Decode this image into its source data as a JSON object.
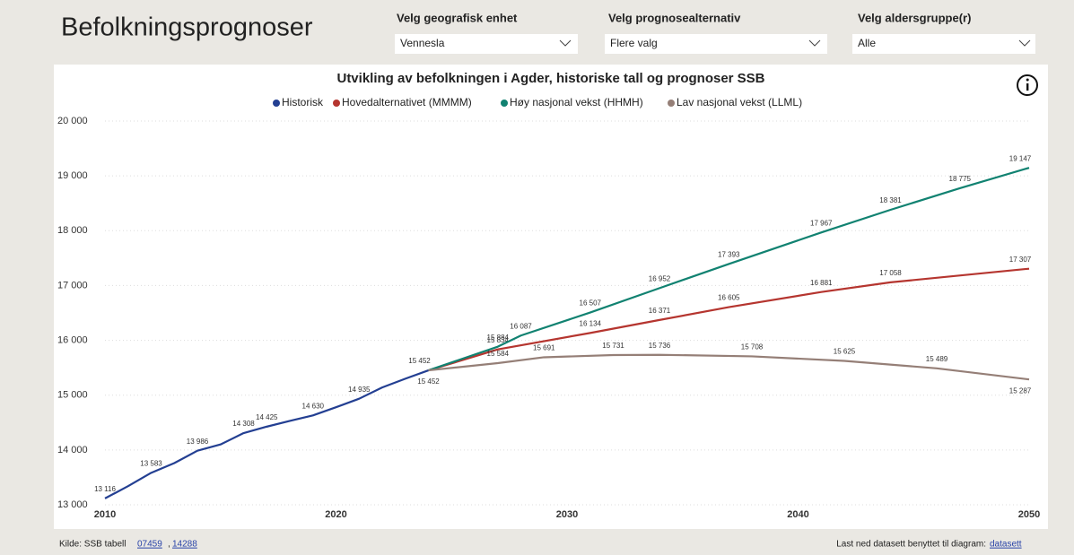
{
  "header": {
    "title": "Befolkningsprognoser"
  },
  "filters": [
    {
      "label": "Velg geografisk enhet",
      "value": "Vennesla"
    },
    {
      "label": "Velg prognosealternativ",
      "value": "Flere valg"
    },
    {
      "label": "Velg aldersgruppe(r)",
      "value": "Alle"
    }
  ],
  "chart": {
    "type": "line",
    "title": "Utvikling av befolkningen i Agder, historiske tall og prognoser SSB",
    "xlim": [
      2010,
      2050
    ],
    "xticks": [
      2010,
      2020,
      2030,
      2040,
      2050
    ],
    "ylim": [
      13000,
      20000
    ],
    "yticks": [
      {
        "value": 13000,
        "label": "13 000"
      },
      {
        "value": 14000,
        "label": "14 000"
      },
      {
        "value": 15000,
        "label": "15 000"
      },
      {
        "value": 16000,
        "label": "16 000"
      },
      {
        "value": 17000,
        "label": "17 000"
      },
      {
        "value": 18000,
        "label": "18 000"
      },
      {
        "value": 19000,
        "label": "19 000"
      },
      {
        "value": 20000,
        "label": "20 000"
      }
    ],
    "grid": true,
    "series": [
      {
        "name": "Historisk",
        "color": "#233f92",
        "x": [
          2010,
          2011,
          2012,
          2013,
          2014,
          2015,
          2016,
          2017,
          2018,
          2019,
          2020,
          2021,
          2022,
          2023,
          2024
        ],
        "values": [
          13116,
          13340,
          13583,
          13760,
          13986,
          14100,
          14308,
          14425,
          14530,
          14630,
          14780,
          14935,
          15140,
          15300,
          15452
        ],
        "value_labels": [
          "13 116",
          null,
          "13 583",
          null,
          "13 986",
          null,
          "14 308",
          "14 425",
          null,
          "14 630",
          null,
          "14 935",
          null,
          null,
          "15 452"
        ]
      },
      {
        "name": "Hovedalternativet (MMMM)",
        "color": "#b5352f",
        "x": [
          2024,
          2027,
          2031,
          2034,
          2037,
          2041,
          2044,
          2050
        ],
        "values": [
          15452,
          15834,
          16134,
          16371,
          16605,
          16881,
          17058,
          17307
        ],
        "value_labels": [
          "15 452",
          "15 834",
          "16 134",
          "16 371",
          "16 605",
          "16 881",
          "17 058",
          "17 307"
        ]
      },
      {
        "name": "Høy nasjonal vekst (HHMH)",
        "color": "#118271",
        "x": [
          2024,
          2027,
          2028,
          2031,
          2034,
          2037,
          2041,
          2044,
          2047,
          2050
        ],
        "values": [
          15452,
          15884,
          16087,
          16507,
          16952,
          17393,
          17967,
          18381,
          18775,
          19147
        ],
        "value_labels": [
          null,
          "15 884",
          "16 087",
          "16 507",
          "16 952",
          "17 393",
          "17 967",
          "18 381",
          "18 775",
          "19 147"
        ]
      },
      {
        "name": "Lav nasjonal vekst (LLML)",
        "color": "#957f77",
        "x": [
          2024,
          2027,
          2029,
          2032,
          2034,
          2038,
          2042,
          2046,
          2050
        ],
        "values": [
          15452,
          15584,
          15691,
          15731,
          15736,
          15708,
          15625,
          15489,
          15287
        ],
        "value_labels": [
          null,
          "15 584",
          "15 691",
          "15 731",
          "15 736",
          "15 708",
          "15 625",
          "15 489",
          "15 287"
        ]
      }
    ]
  },
  "footer": {
    "source": "Kilde: SSB tabell",
    "links": [
      "07459",
      "14288"
    ],
    "separator": ",",
    "download": "Last ned datasett benyttet til diagram:",
    "download_link": "datasett"
  }
}
